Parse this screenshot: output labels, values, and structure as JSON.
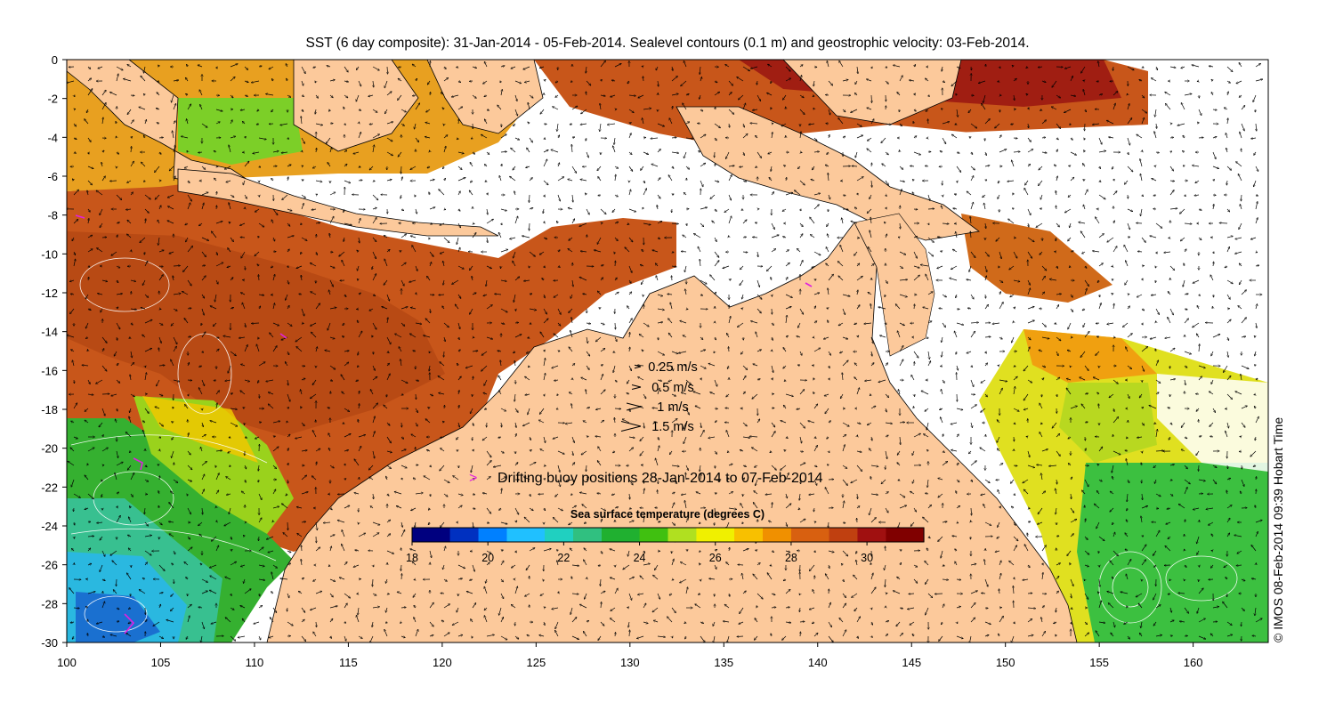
{
  "title": "SST (6 day composite): 31-Jan-2014 - 05-Feb-2014. Sealevel contours (0.1 m) and geostrophic velocity: 03-Feb-2014.",
  "credit": "© IMOS 08-Feb-2014 09:39 Hobart Time",
  "axes": {
    "x_ticks": [
      "100",
      "105",
      "110",
      "115",
      "120",
      "125",
      "130",
      "135",
      "140",
      "145",
      "150",
      "155",
      "160"
    ],
    "y_ticks": [
      "0",
      "-2",
      "-4",
      "-6",
      "-8",
      "-10",
      "-12",
      "-14",
      "-16",
      "-18",
      "-20",
      "-22",
      "-24",
      "-26",
      "-28",
      "-30"
    ],
    "lon_range": [
      100,
      164
    ],
    "lat_range": [
      -30,
      0
    ]
  },
  "velocity_legend": [
    {
      "label": "0.25 m/s",
      "speed": 0.25
    },
    {
      "label": "0.5 m/s",
      "speed": 0.5
    },
    {
      "label": "1 m/s",
      "speed": 1
    },
    {
      "label": "1.5 m/s",
      "speed": 1.5
    }
  ],
  "buoy_legend": {
    "text": "Drifting buoy positions 28-Jan-2014 to 07-Feb-2014",
    "color": "#e020e0"
  },
  "colorbar": {
    "title": "Sea surface temperature (degrees C)",
    "ticks": [
      "18",
      "20",
      "22",
      "24",
      "26",
      "28",
      "30"
    ],
    "range": [
      18,
      31.5
    ],
    "colors": [
      "#00007f",
      "#0030c0",
      "#0080ff",
      "#20c0ff",
      "#20d0c0",
      "#30c080",
      "#20b030",
      "#40c010",
      "#b0e020",
      "#f0f000",
      "#f8c000",
      "#f09000",
      "#d86010",
      "#c04010",
      "#a01010",
      "#800000"
    ]
  },
  "colors": {
    "land": "#fcc99b",
    "no_data": "#ffffff",
    "warm_sea": "#c8561a",
    "arrow": "#000000"
  }
}
